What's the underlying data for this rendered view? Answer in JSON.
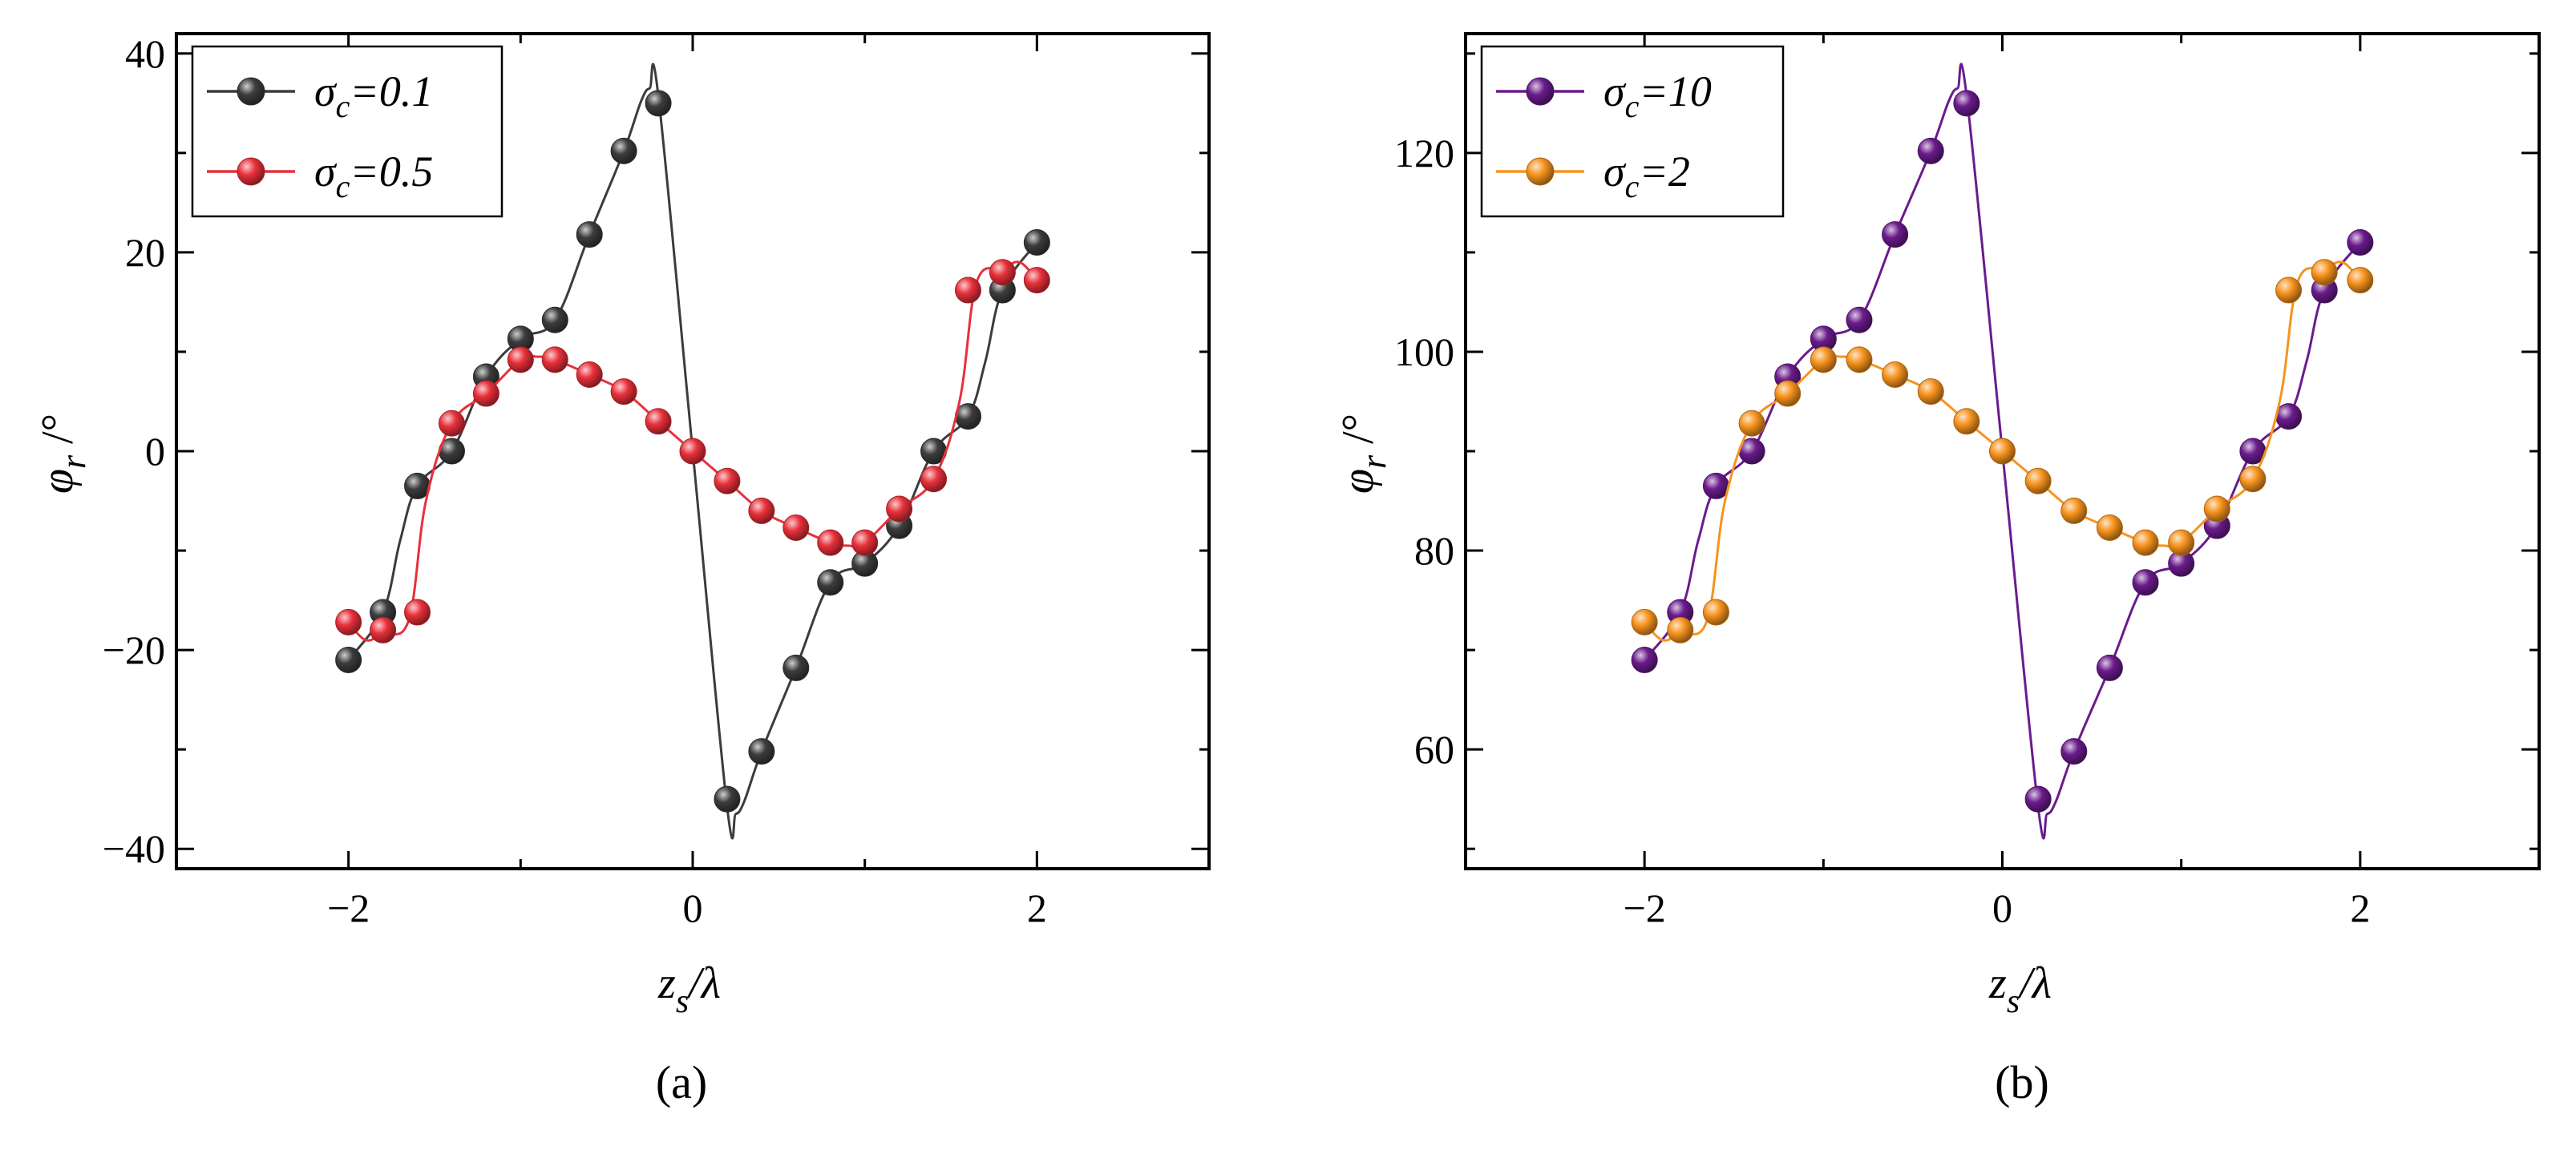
{
  "figure": {
    "panels": [
      "(a)",
      "(b)"
    ]
  },
  "chart_data": [
    {
      "type": "line",
      "panel_label": "(a)",
      "xlabel": "z_s/λ",
      "ylabel": "φ_r /°",
      "xlim": [
        -3,
        3
      ],
      "ylim": [
        -42,
        42
      ],
      "xticks": [
        -2,
        0,
        2
      ],
      "yticks": [
        -40,
        -20,
        0,
        20,
        40
      ],
      "xtick_labels": [
        "−2",
        "0",
        "2"
      ],
      "ytick_labels": [
        "−40",
        "−20",
        "0",
        "20",
        "40"
      ],
      "legend_position": "top-left",
      "grid": false,
      "series": [
        {
          "name": "σc=0.1",
          "name_base": "σ",
          "name_sub": "c",
          "name_rest": "=0.1",
          "color": "#3c3c3c",
          "points_x": [
            -2.0,
            -1.8,
            -1.6,
            -1.4,
            -1.2,
            -1.0,
            -0.8,
            -0.6,
            -0.4,
            -0.2,
            0.2,
            0.4,
            0.6,
            0.8,
            1.0,
            1.2,
            1.4,
            1.6,
            1.8,
            2.0
          ],
          "points_y": [
            -21,
            -16.2,
            -3.5,
            0,
            7.5,
            11.3,
            13.2,
            21.8,
            30.2,
            35.0,
            -35.0,
            -30.2,
            -21.8,
            -13.2,
            -11.3,
            -7.5,
            0,
            3.5,
            16.2,
            21
          ],
          "curve_x": [
            -2.0,
            -1.8,
            -1.7,
            -1.6,
            -1.4,
            -1.2,
            -1.0,
            -0.8,
            -0.6,
            -0.4,
            -0.3,
            -0.25,
            -0.2,
            0.0,
            0.2,
            0.25,
            0.3,
            0.4,
            0.6,
            0.8,
            1.0,
            1.2,
            1.4,
            1.6,
            1.7,
            1.8,
            2.0
          ],
          "curve_y": [
            -21,
            -16.2,
            -9,
            -3.5,
            0,
            7.5,
            11.3,
            13.2,
            21.8,
            30.2,
            35.2,
            36.5,
            35.8,
            0,
            -35.8,
            -36.5,
            -35.2,
            -30.2,
            -21.8,
            -13.2,
            -11.3,
            -7.5,
            0,
            3.5,
            9,
            16.2,
            21
          ]
        },
        {
          "name": "σc=0.5",
          "name_base": "σ",
          "name_sub": "c",
          "name_rest": "=0.5",
          "color": "#e8303a",
          "points_x": [
            -2.0,
            -1.8,
            -1.6,
            -1.4,
            -1.2,
            -1.0,
            -0.8,
            -0.6,
            -0.4,
            -0.2,
            0.0,
            0.2,
            0.4,
            0.6,
            0.8,
            1.0,
            1.2,
            1.4,
            1.6,
            1.8,
            2.0
          ],
          "points_y": [
            -17.2,
            -18,
            -16.2,
            2.8,
            5.8,
            9.2,
            9.2,
            7.7,
            6.0,
            3.0,
            0,
            -3.0,
            -6.0,
            -7.7,
            -9.2,
            -9.2,
            -5.8,
            -2.8,
            16.2,
            18,
            17.2
          ],
          "curve_x": [
            -2.0,
            -1.9,
            -1.8,
            -1.65,
            -1.55,
            -1.4,
            -1.2,
            -1.0,
            -0.9,
            -0.8,
            -0.6,
            -0.4,
            -0.2,
            0.0,
            0.2,
            0.4,
            0.6,
            0.8,
            0.9,
            1.0,
            1.2,
            1.4,
            1.55,
            1.65,
            1.8,
            1.9,
            2.0
          ],
          "curve_y": [
            -17.2,
            -19,
            -18.3,
            -17,
            -5,
            2.8,
            5.8,
            9.2,
            9.5,
            9.2,
            7.7,
            6.0,
            3.0,
            0,
            -3.0,
            -6.0,
            -7.7,
            -9.2,
            -9.5,
            -9.2,
            -5.8,
            -2.8,
            5,
            17,
            18.3,
            19,
            17.2
          ]
        }
      ]
    },
    {
      "type": "line",
      "panel_label": "(b)",
      "xlabel": "z_s/λ",
      "ylabel": "φ_r /°",
      "xlim": [
        -3,
        3
      ],
      "ylim": [
        48,
        132
      ],
      "xticks": [
        -2,
        0,
        2
      ],
      "yticks": [
        60,
        80,
        100,
        120
      ],
      "xtick_labels": [
        "−2",
        "0",
        "2"
      ],
      "ytick_labels": [
        "60",
        "80",
        "100",
        "120"
      ],
      "legend_position": "top-left",
      "grid": false,
      "series": [
        {
          "name": "σc=10",
          "name_base": "σ",
          "name_sub": "c",
          "name_rest": "=10",
          "color": "#6a1b8c",
          "points_x": [
            -2.0,
            -1.8,
            -1.6,
            -1.4,
            -1.2,
            -1.0,
            -0.8,
            -0.6,
            -0.4,
            -0.2,
            0.2,
            0.4,
            0.6,
            0.8,
            1.0,
            1.2,
            1.4,
            1.6,
            1.8,
            2.0
          ],
          "points_y": [
            69,
            73.8,
            86.5,
            90,
            97.5,
            101.3,
            103.2,
            111.8,
            120.2,
            125.0,
            55.0,
            59.8,
            68.2,
            76.8,
            78.7,
            82.5,
            90,
            93.5,
            106.2,
            111
          ],
          "curve_x": [
            -2.0,
            -1.8,
            -1.7,
            -1.6,
            -1.4,
            -1.2,
            -1.0,
            -0.8,
            -0.6,
            -0.4,
            -0.3,
            -0.25,
            -0.2,
            0.0,
            0.2,
            0.25,
            0.3,
            0.4,
            0.6,
            0.8,
            1.0,
            1.2,
            1.4,
            1.6,
            1.7,
            1.8,
            2.0
          ],
          "curve_y": [
            69,
            73.8,
            81,
            86.5,
            90,
            97.5,
            101.3,
            103.2,
            111.8,
            120.2,
            125.2,
            126.5,
            125.8,
            90,
            54.2,
            53.5,
            54.8,
            59.8,
            68.2,
            76.8,
            78.7,
            82.5,
            90,
            93.5,
            99,
            106.2,
            111
          ]
        },
        {
          "name": "σc=2",
          "name_base": "σ",
          "name_sub": "c",
          "name_rest": "=2",
          "color": "#f7931e",
          "points_x": [
            -2.0,
            -1.8,
            -1.6,
            -1.4,
            -1.2,
            -1.0,
            -0.8,
            -0.6,
            -0.4,
            -0.2,
            0.0,
            0.2,
            0.4,
            0.6,
            0.8,
            1.0,
            1.2,
            1.4,
            1.6,
            1.8,
            2.0
          ],
          "points_y": [
            72.8,
            72,
            73.8,
            92.8,
            95.8,
            99.2,
            99.2,
            97.7,
            96.0,
            93.0,
            90,
            87.0,
            84.0,
            82.3,
            80.8,
            80.8,
            84.2,
            87.2,
            106.2,
            108,
            107.2
          ],
          "curve_x": [
            -2.0,
            -1.9,
            -1.8,
            -1.65,
            -1.55,
            -1.4,
            -1.2,
            -1.0,
            -0.9,
            -0.8,
            -0.6,
            -0.4,
            -0.2,
            0.0,
            0.2,
            0.4,
            0.6,
            0.8,
            0.9,
            1.0,
            1.2,
            1.4,
            1.55,
            1.65,
            1.8,
            1.9,
            2.0
          ],
          "curve_y": [
            72.8,
            71,
            71.7,
            73,
            85,
            92.8,
            95.8,
            99.2,
            99.5,
            99.2,
            97.7,
            96.0,
            93.0,
            90,
            87.0,
            84.0,
            82.3,
            80.8,
            80.5,
            80.8,
            84.2,
            87.2,
            95,
            107,
            108.3,
            109,
            107.2
          ]
        }
      ]
    }
  ]
}
